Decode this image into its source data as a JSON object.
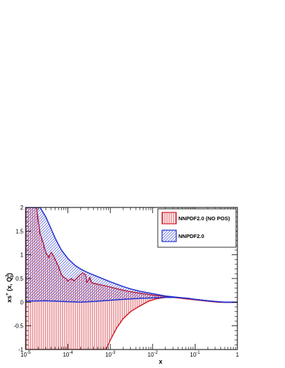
{
  "chart_data": {
    "type": "area",
    "xscale": "log",
    "xlim": [
      1e-05,
      1
    ],
    "ylim": [
      -1,
      2
    ],
    "xlabel": "x",
    "ylabel": "xs⁺ (x, Q₀²)",
    "ylabel_parts": {
      "main": "xs",
      "sup1": "+",
      "mid": " (x, Q",
      "sub": "0",
      "sup2": "2",
      "end": ")"
    },
    "x_ticks": [
      {
        "value": 1e-05,
        "base": "10",
        "exp": "-5"
      },
      {
        "value": 0.0001,
        "base": "10",
        "exp": "-4"
      },
      {
        "value": 0.001,
        "base": "10",
        "exp": "-3"
      },
      {
        "value": 0.01,
        "base": "10",
        "exp": "-2"
      },
      {
        "value": 0.1,
        "base": "10",
        "exp": "-1"
      },
      {
        "value": 1,
        "base": "1",
        "exp": ""
      }
    ],
    "y_ticks": [
      {
        "value": -1,
        "label": "-1"
      },
      {
        "value": -0.5,
        "label": "-0.5"
      },
      {
        "value": 0,
        "label": "0"
      },
      {
        "value": 0.5,
        "label": "0.5"
      },
      {
        "value": 1,
        "label": "1"
      },
      {
        "value": 1.5,
        "label": "1.5"
      },
      {
        "value": 2,
        "label": "2"
      }
    ],
    "legend_position": "top-right",
    "series": [
      {
        "name": "NNPDF2.0 (NO POS)",
        "color": "#d0202a",
        "hatch": "vertical",
        "upper": [
          [
            1e-05,
            2.0
          ],
          [
            1.8e-05,
            2.0
          ],
          [
            2.2e-05,
            1.45
          ],
          [
            2.6e-05,
            1.25
          ],
          [
            3e-05,
            1.05
          ],
          [
            3.5e-05,
            0.95
          ],
          [
            4e-05,
            1.05
          ],
          [
            4.5e-05,
            0.99
          ],
          [
            5e-05,
            0.9
          ],
          [
            6e-05,
            0.75
          ],
          [
            7e-05,
            0.58
          ],
          [
            8e-05,
            0.52
          ],
          [
            9e-05,
            0.5
          ],
          [
            0.0001,
            0.45
          ],
          [
            0.00012,
            0.5
          ],
          [
            0.00014,
            0.45
          ],
          [
            0.00018,
            0.55
          ],
          [
            0.00022,
            0.62
          ],
          [
            0.00026,
            0.58
          ],
          [
            0.00028,
            0.42
          ],
          [
            0.0003,
            0.45
          ],
          [
            0.00033,
            0.52
          ],
          [
            0.00036,
            0.42
          ],
          [
            0.0004,
            0.4
          ],
          [
            0.0005,
            0.38
          ],
          [
            0.0008,
            0.34
          ],
          [
            0.0015,
            0.28
          ],
          [
            0.003,
            0.22
          ],
          [
            0.006,
            0.18
          ],
          [
            0.01,
            0.15
          ],
          [
            0.02,
            0.12
          ],
          [
            0.05,
            0.08
          ],
          [
            0.1,
            0.06
          ],
          [
            0.2,
            0.03
          ],
          [
            0.3,
            0.01
          ],
          [
            0.5,
            0.0
          ],
          [
            0.7,
            0.0
          ],
          [
            1,
            0.0
          ]
        ],
        "lower": [
          [
            1e-05,
            -1.0
          ],
          [
            0.0008,
            -1.0
          ],
          [
            0.001,
            -0.8
          ],
          [
            0.0014,
            -0.55
          ],
          [
            0.002,
            -0.35
          ],
          [
            0.003,
            -0.2
          ],
          [
            0.005,
            -0.08
          ],
          [
            0.008,
            0.02
          ],
          [
            0.012,
            0.07
          ],
          [
            0.02,
            0.1
          ],
          [
            0.035,
            0.1
          ],
          [
            0.06,
            0.07
          ],
          [
            0.1,
            0.05
          ],
          [
            0.2,
            0.02
          ],
          [
            0.35,
            0.0
          ],
          [
            0.5,
            -0.005
          ],
          [
            0.7,
            0.0
          ],
          [
            1,
            0.0
          ]
        ]
      },
      {
        "name": "NNPDF2.0",
        "color": "#2030d0",
        "hatch": "diagonal",
        "upper": [
          [
            1e-05,
            2.0
          ],
          [
            2.2e-05,
            2.0
          ],
          [
            3e-05,
            1.8
          ],
          [
            4e-05,
            1.55
          ],
          [
            5e-05,
            1.35
          ],
          [
            7e-05,
            1.1
          ],
          [
            0.0001,
            0.92
          ],
          [
            0.00015,
            0.77
          ],
          [
            0.0002,
            0.7
          ],
          [
            0.0003,
            0.62
          ],
          [
            0.0005,
            0.54
          ],
          [
            0.001,
            0.43
          ],
          [
            0.002,
            0.33
          ],
          [
            0.003,
            0.28
          ],
          [
            0.005,
            0.23
          ],
          [
            0.01,
            0.18
          ],
          [
            0.02,
            0.13
          ],
          [
            0.04,
            0.1
          ],
          [
            0.07,
            0.08
          ],
          [
            0.1,
            0.06
          ],
          [
            0.2,
            0.03
          ],
          [
            0.4,
            0.005
          ],
          [
            0.6,
            0.0
          ],
          [
            1,
            0.0
          ]
        ],
        "lower": [
          [
            1e-05,
            0.02
          ],
          [
            3e-05,
            0.03
          ],
          [
            0.0001,
            0.01
          ],
          [
            0.0002,
            0.0
          ],
          [
            0.0005,
            0.02
          ],
          [
            0.001,
            0.04
          ],
          [
            0.002,
            0.06
          ],
          [
            0.005,
            0.08
          ],
          [
            0.01,
            0.09
          ],
          [
            0.02,
            0.1
          ],
          [
            0.04,
            0.1
          ],
          [
            0.07,
            0.08
          ],
          [
            0.1,
            0.06
          ],
          [
            0.2,
            0.03
          ],
          [
            0.4,
            0.005
          ],
          [
            0.6,
            -0.005
          ],
          [
            1,
            0.0
          ]
        ]
      }
    ]
  }
}
